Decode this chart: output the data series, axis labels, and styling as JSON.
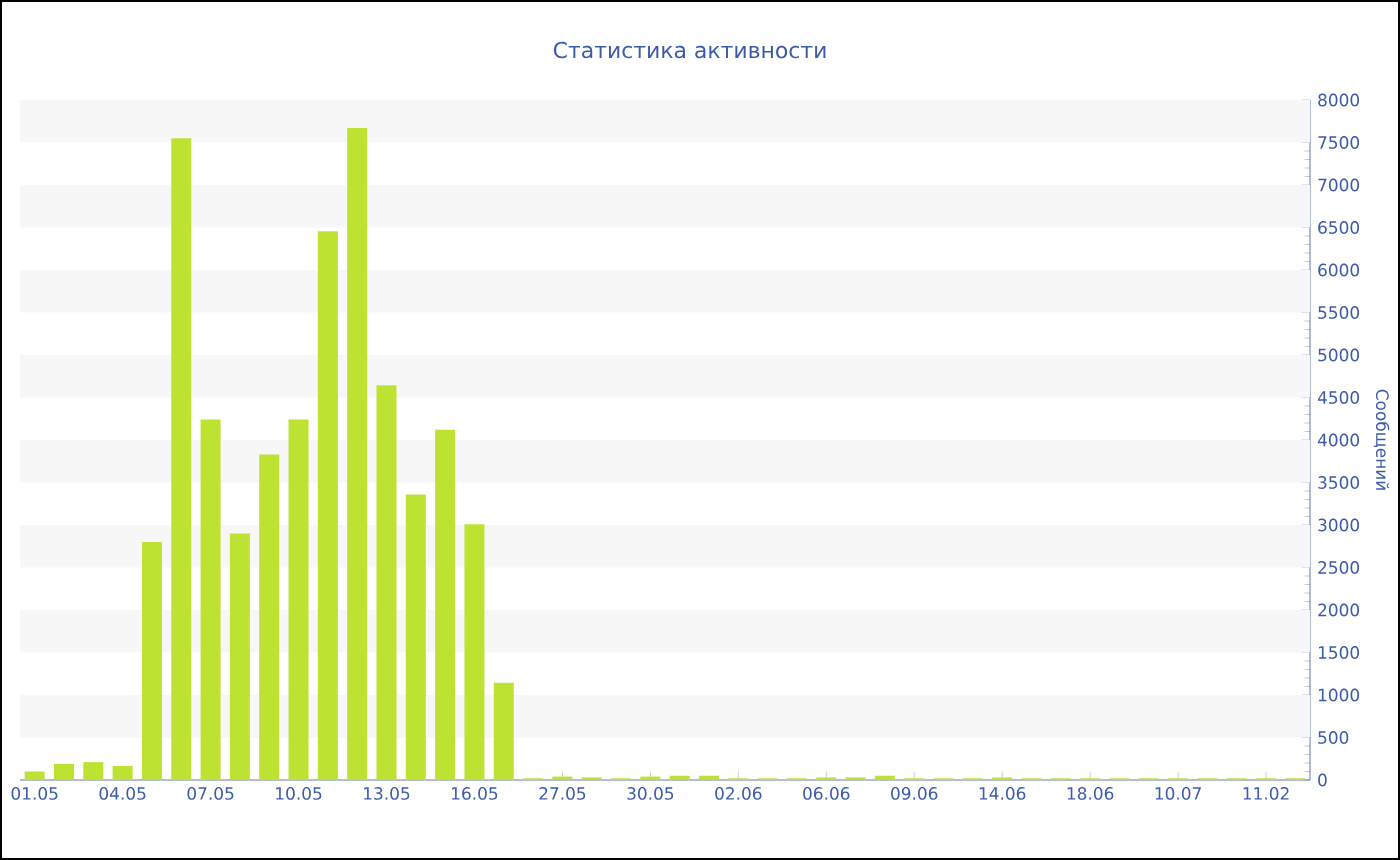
{
  "chart_data": {
    "type": "bar",
    "title": "Статистика активности",
    "ylabel": "Сообщений",
    "categories": [
      "01.05",
      null,
      null,
      "04.05",
      null,
      null,
      "07.05",
      null,
      null,
      "10.05",
      null,
      null,
      "13.05",
      null,
      null,
      "16.05",
      null,
      null,
      "27.05",
      null,
      null,
      "30.05",
      null,
      null,
      "02.06",
      null,
      null,
      "06.06",
      null,
      null,
      "09.06",
      null,
      null,
      "14.06",
      null,
      null,
      "18.06",
      null,
      null,
      "10.07",
      null,
      null,
      "11.02",
      null
    ],
    "values": [
      100,
      190,
      210,
      165,
      2800,
      7550,
      4240,
      2900,
      3830,
      4240,
      6455,
      7670,
      4645,
      3360,
      4120,
      3010,
      1145,
      20,
      40,
      30,
      20,
      40,
      50,
      50,
      20,
      20,
      20,
      30,
      30,
      50,
      20,
      20,
      20,
      30,
      20,
      20,
      20,
      20,
      20,
      20,
      20,
      20,
      20,
      20
    ],
    "color": "#bde232",
    "ylim": [
      0,
      8000
    ],
    "yticks": [
      0,
      500,
      1000,
      1500,
      2000,
      2500,
      3000,
      3500,
      4000,
      4500,
      5000,
      5500,
      6000,
      6500,
      7000,
      7500,
      8000
    ],
    "bands": [
      {
        "axis": "y",
        "from": 500,
        "to": 1000,
        "color": "#f7f7f7"
      },
      {
        "axis": "y",
        "from": 1500,
        "to": 2000,
        "color": "#f7f7f7"
      },
      {
        "axis": "y",
        "from": 2500,
        "to": 3000,
        "color": "#f7f7f7"
      },
      {
        "axis": "y",
        "from": 3500,
        "to": 4000,
        "color": "#f7f7f7"
      },
      {
        "axis": "y",
        "from": 4500,
        "to": 5000,
        "color": "#f7f7f7"
      },
      {
        "axis": "y",
        "from": 5500,
        "to": 6000,
        "color": "#f7f7f7"
      },
      {
        "axis": "y",
        "from": 6500,
        "to": 7000,
        "color": "#f7f7f7"
      },
      {
        "axis": "y",
        "from": 7500,
        "to": 8000,
        "color": "#f7f7f7"
      }
    ]
  }
}
